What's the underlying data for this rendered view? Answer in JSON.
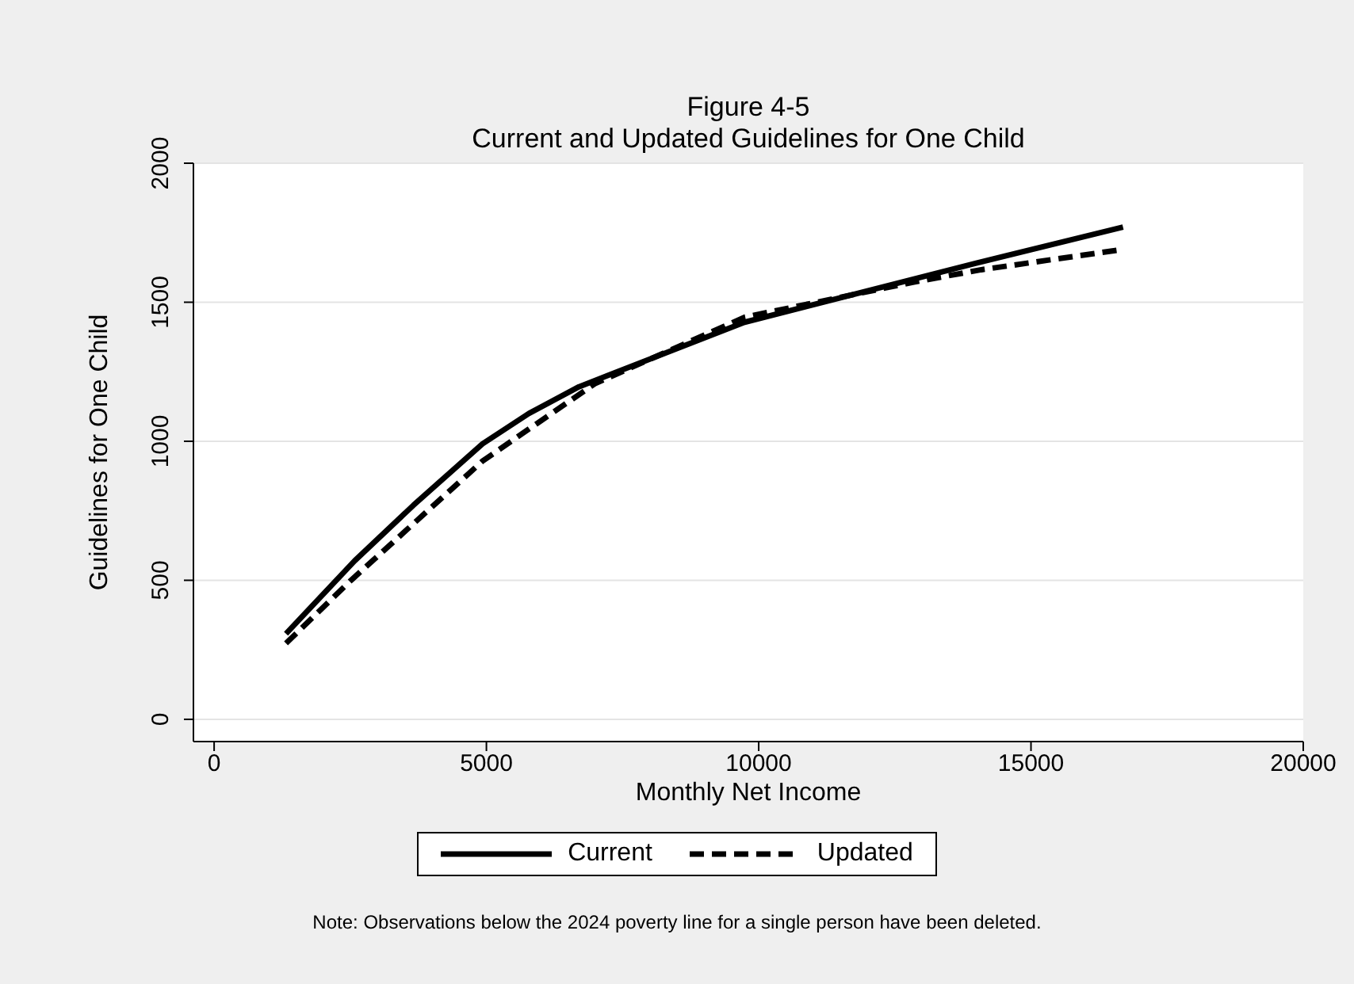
{
  "chart_data": {
    "type": "line",
    "title": "Figure 4-5",
    "subtitle": "Current and Updated Guidelines for One Child",
    "xlabel": "Monthly Net Income",
    "ylabel": "Guidelines for One Child",
    "annotations": [
      "Note: Observations below the 2024 poverty line for a single person have been deleted."
    ],
    "series": [
      {
        "name": "Current",
        "color": "#000000",
        "line_style": "solid",
        "x": [
          1320,
          2580,
          3660,
          4930,
          5780,
          6700,
          9740,
          13980,
          16690
        ],
        "values": [
          308,
          570,
          770,
          991,
          1100,
          1196,
          1428,
          1640,
          1770
        ]
      },
      {
        "name": "Updated",
        "color": "#000000",
        "line_style": "dashed",
        "x": [
          1320,
          2520,
          4930,
          5840,
          6990,
          9740,
          12830,
          14090,
          16690
        ],
        "values": [
          273,
          501,
          929,
          1052,
          1207,
          1446,
          1572,
          1617,
          1690
        ]
      }
    ],
    "xlim": [
      -380,
      20000
    ],
    "xticks": [
      0,
      5000,
      10000,
      15000,
      20000
    ],
    "ylim": [
      -80,
      2000
    ],
    "yticks": [
      0,
      500,
      1000,
      1500,
      2000
    ],
    "grid": "y",
    "legend": "bottom",
    "marker": "none"
  }
}
